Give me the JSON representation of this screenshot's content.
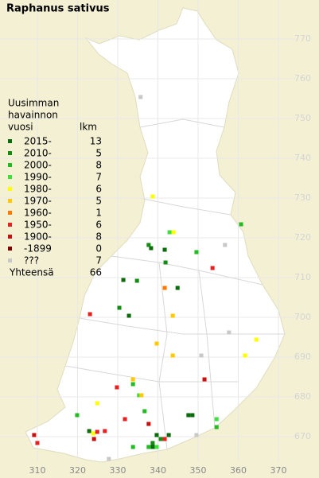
{
  "title": "Raphanus sativus",
  "legend": {
    "header": [
      "Uusimman",
      "havainnon",
      "vuosi"
    ],
    "count_header": "lkm",
    "rows": [
      {
        "label": "2015-",
        "count": 13,
        "color": "#0b6a0b",
        "points": [
          [
            338.3,
            717.4
          ],
          [
            341.7,
            717.0
          ],
          [
            331.4,
            709.4
          ],
          [
            344.9,
            707.4
          ],
          [
            332.8,
            700.4
          ],
          [
            347.6,
            675.4
          ],
          [
            348.6,
            675.4
          ],
          [
            322.9,
            671.4
          ],
          [
            339.7,
            670.4
          ],
          [
            342.7,
            670.4
          ],
          [
            338.7,
            667.4
          ]
        ]
      },
      {
        "label": "2010-",
        "count": 5,
        "color": "#148c14",
        "points": [
          [
            337.7,
            718.2
          ],
          [
            341.9,
            713.8
          ],
          [
            334.8,
            709.2
          ],
          [
            330.4,
            702.4
          ],
          [
            340.7,
            669.4
          ],
          [
            338.7,
            668.4
          ]
        ]
      },
      {
        "label": "2000-",
        "count": 8,
        "color": "#22bb22",
        "points": [
          [
            360.7,
            723.4
          ],
          [
            349.6,
            716.4
          ],
          [
            333.8,
            683.2
          ],
          [
            336.7,
            676.4
          ],
          [
            319.9,
            675.4
          ],
          [
            354.6,
            672.4
          ],
          [
            337.7,
            667.4
          ],
          [
            333.8,
            667.4
          ]
        ]
      },
      {
        "label": "1990-",
        "count": 7,
        "color": "#3ee03e",
        "points": [
          [
            342.9,
            721.4
          ],
          [
            335.3,
            680.4
          ],
          [
            354.6,
            674.4
          ],
          [
            339.7,
            667.4
          ]
        ]
      },
      {
        "label": "1980-",
        "count": 6,
        "color": "#ffff00",
        "points": [
          [
            338.7,
            730.4
          ],
          [
            343.9,
            721.4
          ],
          [
            364.5,
            694.4
          ],
          [
            361.7,
            690.4
          ],
          [
            324.9,
            678.4
          ],
          [
            323.9,
            670.8
          ]
        ]
      },
      {
        "label": "1970-",
        "count": 5,
        "color": "#ffc800",
        "points": [
          [
            343.7,
            700.4
          ],
          [
            339.7,
            693.4
          ],
          [
            343.7,
            690.4
          ],
          [
            333.8,
            684.4
          ],
          [
            335.9,
            680.4
          ]
        ]
      },
      {
        "label": "1960-",
        "count": 1,
        "color": "#ff7800",
        "points": [
          [
            341.7,
            707.4
          ]
        ]
      },
      {
        "label": "1950-",
        "count": 6,
        "color": "#e82020",
        "points": [
          [
            353.6,
            712.4
          ],
          [
            323.1,
            700.8
          ],
          [
            329.8,
            682.4
          ],
          [
            331.8,
            674.4
          ],
          [
            324.9,
            671.2
          ],
          [
            326.8,
            671.4
          ],
          [
            310.0,
            668.4
          ],
          [
            341.7,
            669.4
          ]
        ]
      },
      {
        "label": "1900-",
        "count": 8,
        "color": "#c81010",
        "points": [
          [
            351.6,
            684.4
          ],
          [
            337.7,
            673.2
          ],
          [
            324.1,
            669.4
          ],
          [
            309.2,
            670.4
          ]
        ]
      },
      {
        "label": "-1899",
        "count": 0,
        "color": "#800000",
        "points": []
      },
      {
        "label": "???",
        "count": 7,
        "color": "#c8c8c8",
        "points": [
          [
            335.7,
            755.4
          ],
          [
            356.7,
            718.2
          ],
          [
            357.7,
            696.2
          ],
          [
            350.8,
            690.4
          ],
          [
            327.8,
            664.4
          ],
          [
            349.6,
            670.4
          ]
        ]
      }
    ],
    "total_label": "Yhteensä",
    "total": 66
  },
  "map": {
    "xlim": [
      300.7,
      380.1
    ],
    "ylim": [
      659.6,
      779.8
    ],
    "xticks": [
      310,
      320,
      330,
      340,
      350,
      360,
      370
    ],
    "yticks": [
      670,
      680,
      690,
      700,
      710,
      720,
      730,
      740,
      750,
      760,
      770
    ]
  }
}
